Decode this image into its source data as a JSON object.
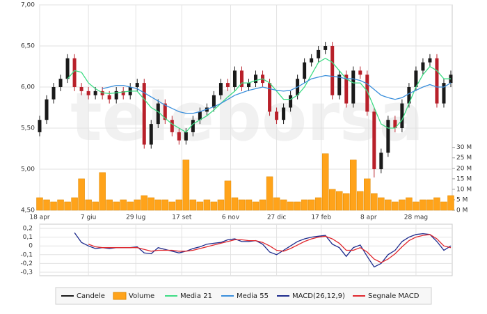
{
  "chart_data": [
    {
      "type": "candlestick",
      "name": "Candele",
      "color": "#1a1a1a",
      "down_color": "#b8202a",
      "watermark": "teleborsa",
      "x": [
        0,
        5,
        10,
        15,
        20,
        25,
        30,
        35,
        40,
        45,
        50,
        55,
        60,
        65,
        70,
        75,
        80,
        85,
        90,
        95,
        100,
        105,
        110,
        115,
        120,
        125,
        130,
        135,
        140,
        145,
        150,
        155,
        160,
        165,
        170,
        175,
        180,
        185,
        190,
        195,
        200,
        205,
        210,
        215,
        220,
        225,
        230,
        235,
        240,
        245,
        250,
        255,
        260,
        265,
        270,
        275,
        280,
        285,
        290,
        295
      ],
      "open": [
        5.45,
        5.6,
        5.85,
        6.0,
        6.1,
        6.35,
        6.0,
        5.95,
        5.9,
        5.95,
        5.9,
        5.85,
        5.95,
        5.9,
        6.0,
        6.05,
        5.3,
        5.55,
        5.8,
        5.6,
        5.45,
        5.35,
        5.45,
        5.6,
        5.7,
        5.75,
        5.9,
        6.05,
        6.0,
        6.2,
        6.0,
        6.05,
        6.15,
        6.05,
        5.7,
        5.6,
        5.75,
        5.9,
        6.1,
        6.3,
        6.35,
        6.45,
        6.5,
        5.9,
        6.15,
        5.8,
        6.2,
        6.15,
        5.7,
        5.0,
        5.2,
        5.6,
        5.5,
        5.8,
        6.0,
        6.2,
        6.3,
        6.35,
        5.8,
        6.05
      ],
      "high": [
        5.65,
        5.9,
        6.05,
        6.15,
        6.4,
        6.4,
        6.05,
        6.0,
        6.0,
        6.0,
        5.95,
        6.0,
        6.0,
        6.05,
        6.1,
        6.1,
        5.6,
        5.85,
        5.85,
        5.65,
        5.5,
        5.5,
        5.65,
        5.75,
        5.8,
        5.95,
        6.1,
        6.1,
        6.25,
        6.25,
        6.1,
        6.2,
        6.2,
        6.1,
        5.75,
        5.8,
        5.95,
        6.15,
        6.35,
        6.4,
        6.5,
        6.55,
        6.55,
        6.2,
        6.2,
        6.25,
        6.25,
        6.2,
        5.75,
        5.25,
        5.65,
        5.65,
        5.85,
        6.05,
        6.25,
        6.35,
        6.4,
        6.4,
        6.1,
        6.2
      ],
      "low": [
        5.4,
        5.55,
        5.8,
        5.95,
        6.05,
        5.95,
        5.9,
        5.85,
        5.85,
        5.85,
        5.8,
        5.8,
        5.85,
        5.85,
        5.95,
        5.25,
        5.25,
        5.5,
        5.55,
        5.4,
        5.3,
        5.3,
        5.4,
        5.55,
        5.65,
        5.7,
        5.85,
        5.95,
        5.95,
        5.95,
        5.95,
        6.0,
        6.0,
        5.65,
        5.55,
        5.55,
        5.7,
        5.85,
        6.05,
        6.25,
        6.3,
        6.4,
        5.85,
        5.85,
        5.75,
        5.75,
        6.1,
        5.65,
        4.9,
        4.95,
        5.15,
        5.45,
        5.45,
        5.75,
        5.95,
        6.15,
        6.25,
        5.75,
        5.75,
        6.0
      ],
      "close": [
        5.6,
        5.85,
        6.0,
        6.1,
        6.35,
        6.0,
        5.95,
        5.9,
        5.95,
        5.9,
        5.85,
        5.95,
        5.9,
        6.0,
        6.05,
        5.3,
        5.55,
        5.8,
        5.6,
        5.45,
        5.35,
        5.45,
        5.6,
        5.7,
        5.75,
        5.9,
        6.05,
        6.0,
        6.2,
        6.0,
        6.05,
        6.15,
        6.05,
        5.7,
        5.6,
        5.75,
        5.9,
        6.1,
        6.3,
        6.35,
        6.45,
        6.5,
        5.9,
        6.15,
        5.8,
        6.2,
        6.15,
        5.7,
        5.0,
        5.2,
        5.6,
        5.5,
        5.8,
        6.0,
        6.2,
        6.3,
        6.35,
        5.8,
        6.05,
        6.15
      ],
      "series": [
        {
          "name": "Volume",
          "type": "bar",
          "axis": "y2",
          "color": "#ffa31a",
          "values": [
            6,
            5,
            4,
            5,
            4,
            6,
            15,
            5,
            4,
            18,
            5,
            4,
            5,
            4,
            5,
            7,
            6,
            5,
            5,
            4,
            5,
            24,
            5,
            4,
            5,
            4,
            5,
            14,
            6,
            5,
            5,
            4,
            5,
            16,
            6,
            5,
            4,
            4,
            5,
            5,
            6,
            27,
            10,
            9,
            8,
            24,
            9,
            15,
            8,
            6,
            5,
            4,
            5,
            6,
            4,
            5,
            5,
            6,
            4,
            7
          ]
        },
        {
          "name": "Media 21",
          "type": "line",
          "color": "#3ddc84",
          "values": [
            null,
            null,
            null,
            null,
            6.1,
            6.2,
            6.18,
            6.05,
            5.98,
            5.93,
            5.92,
            5.93,
            5.94,
            5.95,
            5.95,
            5.85,
            5.75,
            5.7,
            5.62,
            5.55,
            5.5,
            5.45,
            5.55,
            5.6,
            5.65,
            5.72,
            5.8,
            5.88,
            5.95,
            6.05,
            6.05,
            6.08,
            6.1,
            6.05,
            5.95,
            5.85,
            5.85,
            5.9,
            6.0,
            6.15,
            6.3,
            6.35,
            6.3,
            6.2,
            6.1,
            6.05,
            6.05,
            5.95,
            5.75,
            5.55,
            5.5,
            5.5,
            5.6,
            5.8,
            6.0,
            6.15,
            6.25,
            6.2,
            6.1,
            6.1
          ]
        },
        {
          "name": "Media 55",
          "type": "line",
          "color": "#3a8fdc",
          "values": [
            null,
            null,
            null,
            null,
            null,
            null,
            null,
            null,
            null,
            5.98,
            6.0,
            6.02,
            6.02,
            6.0,
            5.98,
            5.93,
            5.88,
            5.83,
            5.78,
            5.74,
            5.7,
            5.68,
            5.68,
            5.7,
            5.73,
            5.76,
            5.8,
            5.85,
            5.9,
            5.93,
            5.96,
            5.98,
            6.0,
            5.98,
            5.96,
            5.95,
            5.96,
            6.0,
            6.05,
            6.1,
            6.12,
            6.14,
            6.13,
            6.12,
            6.1,
            6.1,
            6.08,
            6.04,
            5.97,
            5.9,
            5.87,
            5.85,
            5.87,
            5.92,
            5.96,
            6.0,
            6.03,
            6.0,
            6.0,
            6.05
          ]
        }
      ],
      "xlim": [
        0,
        296
      ],
      "xticks": [
        {
          "value": 0,
          "label": "18 apr"
        },
        {
          "value": 35,
          "label": "7 giu"
        },
        {
          "value": 69,
          "label": "29 lug"
        },
        {
          "value": 102,
          "label": "17 set"
        },
        {
          "value": 137,
          "label": "6 nov"
        },
        {
          "value": 170,
          "label": "27 dic"
        },
        {
          "value": 202,
          "label": "17 feb"
        },
        {
          "value": 236,
          "label": "8 apr"
        },
        {
          "value": 270,
          "label": "28 mag"
        }
      ],
      "ylim": [
        4.5,
        7
      ],
      "yticks": [
        {
          "value": 7,
          "label": "7,00"
        },
        {
          "value": 6.5,
          "label": "6,50"
        },
        {
          "value": 6,
          "label": "6,00"
        },
        {
          "value": 5.5,
          "label": "5,50"
        },
        {
          "value": 5,
          "label": "5,00"
        },
        {
          "value": 4.5,
          "label": "4,50"
        }
      ],
      "y2lim": [
        0,
        98
      ],
      "y2ticks": [
        {
          "value": 30,
          "label": "30 M"
        },
        {
          "value": 25,
          "label": "25 M"
        },
        {
          "value": 20,
          "label": "20 M"
        },
        {
          "value": 15,
          "label": "15 M"
        },
        {
          "value": 10,
          "label": "10 M"
        },
        {
          "value": 5,
          "label": "5 M"
        },
        {
          "value": 0,
          "label": "0 M"
        }
      ],
      "grid": true,
      "legend": "bottom"
    },
    {
      "type": "line",
      "series": [
        {
          "name": "MACD(26,12,9)",
          "color": "#1c2a8c",
          "values": [
            null,
            null,
            null,
            null,
            null,
            0.15,
            0.04,
            0.0,
            -0.03,
            -0.02,
            -0.03,
            -0.02,
            -0.02,
            -0.02,
            -0.01,
            -0.08,
            -0.09,
            -0.02,
            -0.04,
            -0.06,
            -0.08,
            -0.06,
            -0.03,
            -0.01,
            0.02,
            0.03,
            0.04,
            0.07,
            0.08,
            0.05,
            0.05,
            0.06,
            0.02,
            -0.07,
            -0.1,
            -0.05,
            0.0,
            0.05,
            0.08,
            0.1,
            0.11,
            0.12,
            0.02,
            -0.02,
            -0.12,
            -0.02,
            0.01,
            -0.12,
            -0.24,
            -0.2,
            -0.1,
            -0.05,
            0.05,
            0.1,
            0.13,
            0.14,
            0.13,
            0.05,
            -0.05,
            0.0
          ]
        },
        {
          "name": "Segnale MACD",
          "color": "#e0282e",
          "values": [
            null,
            null,
            null,
            null,
            null,
            null,
            null,
            0.02,
            -0.01,
            -0.02,
            -0.02,
            -0.02,
            -0.02,
            -0.02,
            -0.02,
            -0.04,
            -0.06,
            -0.05,
            -0.05,
            -0.05,
            -0.06,
            -0.06,
            -0.05,
            -0.03,
            -0.01,
            0.01,
            0.03,
            0.05,
            0.07,
            0.07,
            0.06,
            0.06,
            0.04,
            0.0,
            -0.05,
            -0.06,
            -0.03,
            0.01,
            0.05,
            0.08,
            0.1,
            0.11,
            0.08,
            0.03,
            -0.05,
            -0.05,
            -0.02,
            -0.07,
            -0.15,
            -0.19,
            -0.15,
            -0.09,
            -0.01,
            0.06,
            0.1,
            0.12,
            0.13,
            0.08,
            0.0,
            -0.02
          ]
        }
      ],
      "ylim": [
        -0.3,
        0.2
      ],
      "yticks": [
        {
          "value": 0.2,
          "label": "0,2"
        },
        {
          "value": 0.1,
          "label": "0,1"
        },
        {
          "value": 0,
          "label": "0"
        },
        {
          "value": -0.1,
          "label": "-0,1"
        },
        {
          "value": -0.2,
          "label": "-0,2"
        },
        {
          "value": -0.3,
          "label": "-0,3"
        }
      ],
      "grid": true
    }
  ]
}
